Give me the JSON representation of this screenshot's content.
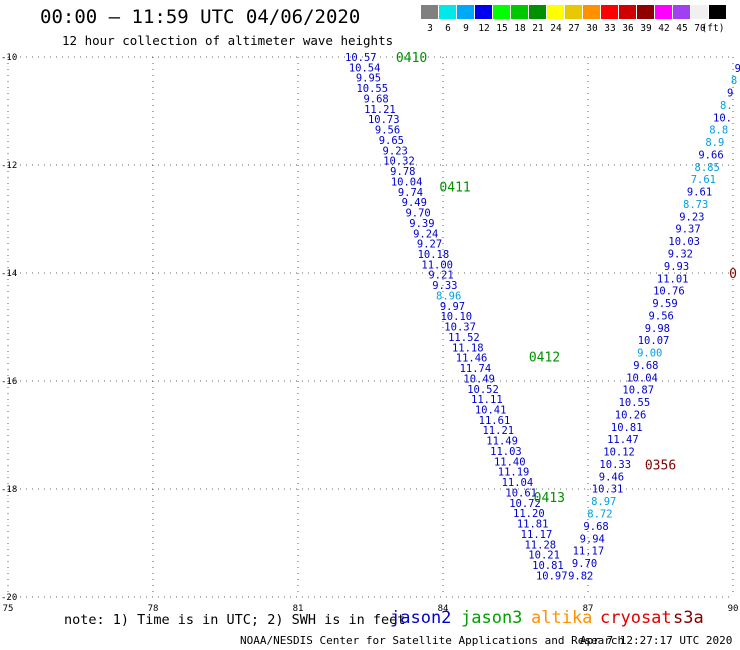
{
  "header": {
    "title": "00:00 – 11:59 UTC 04/06/2020",
    "subtitle": "12 hour collection of altimeter wave heights"
  },
  "colorbar": {
    "unit": "(ft)",
    "cells": [
      {
        "label": "3",
        "color": "#808080"
      },
      {
        "label": "6",
        "color": "#00e8e8"
      },
      {
        "label": "9",
        "color": "#00a8f8"
      },
      {
        "label": "12",
        "color": "#0000f0"
      },
      {
        "label": "15",
        "color": "#00ff00"
      },
      {
        "label": "18",
        "color": "#00c800"
      },
      {
        "label": "21",
        "color": "#009000"
      },
      {
        "label": "24",
        "color": "#ffff00"
      },
      {
        "label": "27",
        "color": "#e8c800"
      },
      {
        "label": "30",
        "color": "#ff9000"
      },
      {
        "label": "33",
        "color": "#ff0000"
      },
      {
        "label": "36",
        "color": "#d00000"
      },
      {
        "label": "39",
        "color": "#900000"
      },
      {
        "label": "42",
        "color": "#ff00ff"
      },
      {
        "label": "45",
        "color": "#a040f0"
      },
      {
        "label": "70",
        "color": "#f0f0f0"
      },
      {
        "label": "",
        "color": "#000000"
      }
    ]
  },
  "footer": {
    "note": "note: 1) Time is in UTC; 2) SWH is in feet",
    "satellites": [
      {
        "name": "jason2",
        "color": "#0000d0"
      },
      {
        "name": "jason3",
        "color": "#00a000"
      },
      {
        "name": "altika",
        "color": "#ff9000"
      },
      {
        "name": "cryosat",
        "color": "#e00000"
      },
      {
        "name": "s3a",
        "color": "#800000"
      }
    ],
    "credit": "NOAA/NESDIS Center for Satellite Applications and Research",
    "timestamp": "Apr  7 12:27:17 UTC 2020"
  },
  "chart_data": {
    "type": "scatter",
    "xlim": [
      75,
      90
    ],
    "ylim": [
      -20,
      -10
    ],
    "xticks": [
      {
        "v": 75,
        "l": "75"
      },
      {
        "v": 78,
        "l": "78"
      },
      {
        "v": 81,
        "l": "81"
      },
      {
        "v": 84,
        "l": "84"
      },
      {
        "v": 87,
        "l": "87"
      },
      {
        "v": 90,
        "l": "90"
      }
    ],
    "yticks": [
      {
        "v": -10,
        "l": "-10"
      },
      {
        "v": -12,
        "l": "-12"
      },
      {
        "v": -14,
        "l": "-14"
      },
      {
        "v": -16,
        "l": "-16"
      },
      {
        "v": -18,
        "l": "-18"
      },
      {
        "v": -20,
        "l": "-20"
      }
    ],
    "grid": true,
    "colors": {
      "blue": "#0000cc",
      "lightblue": "#00a0e0",
      "green": "#009000",
      "darkred": "#800000"
    },
    "tracks": [
      {
        "name": "track-1",
        "start": [
          82.3,
          -10.0
        ],
        "end": [
          86.25,
          -19.6
        ],
        "points": [
          {
            "v": "10.57",
            "c": "blue"
          },
          {
            "v": "10.54",
            "c": "blue"
          },
          {
            "v": "9.95",
            "c": "blue"
          },
          {
            "v": "10.55",
            "c": "blue"
          },
          {
            "v": "9.68",
            "c": "blue"
          },
          {
            "v": "11.21",
            "c": "blue"
          },
          {
            "v": "10.73",
            "c": "blue"
          },
          {
            "v": "9.56",
            "c": "blue"
          },
          {
            "v": "9.65",
            "c": "blue"
          },
          {
            "v": "9.23",
            "c": "blue"
          },
          {
            "v": "10.32",
            "c": "blue"
          },
          {
            "v": "9.78",
            "c": "blue"
          },
          {
            "v": "10.04",
            "c": "blue"
          },
          {
            "v": "9.74",
            "c": "blue"
          },
          {
            "v": "9.49",
            "c": "blue"
          },
          {
            "v": "9.70",
            "c": "blue"
          },
          {
            "v": "9.39",
            "c": "blue"
          },
          {
            "v": "9.24",
            "c": "blue"
          },
          {
            "v": "9.27",
            "c": "blue"
          },
          {
            "v": "10.18",
            "c": "blue"
          },
          {
            "v": "11.00",
            "c": "blue"
          },
          {
            "v": "9.21",
            "c": "blue"
          },
          {
            "v": "9.33",
            "c": "blue"
          },
          {
            "v": "8.96",
            "c": "lightblue"
          },
          {
            "v": "9.97",
            "c": "blue"
          },
          {
            "v": "10.10",
            "c": "blue"
          },
          {
            "v": "10.37",
            "c": "blue"
          },
          {
            "v": "11.52",
            "c": "blue"
          },
          {
            "v": "11.18",
            "c": "blue"
          },
          {
            "v": "11.46",
            "c": "blue"
          },
          {
            "v": "11.74",
            "c": "blue"
          },
          {
            "v": "10.49",
            "c": "blue"
          },
          {
            "v": "10.52",
            "c": "blue"
          },
          {
            "v": "11.11",
            "c": "blue"
          },
          {
            "v": "10.41",
            "c": "blue"
          },
          {
            "v": "11.61",
            "c": "blue"
          },
          {
            "v": "11.21",
            "c": "blue"
          },
          {
            "v": "11.49",
            "c": "blue"
          },
          {
            "v": "11.03",
            "c": "blue"
          },
          {
            "v": "11.40",
            "c": "blue"
          },
          {
            "v": "11.19",
            "c": "blue"
          },
          {
            "v": "11.04",
            "c": "blue"
          },
          {
            "v": "10.61",
            "c": "blue"
          },
          {
            "v": "10.72",
            "c": "blue"
          },
          {
            "v": "11.20",
            "c": "blue"
          },
          {
            "v": "11.81",
            "c": "blue"
          },
          {
            "v": "11.17",
            "c": "blue"
          },
          {
            "v": "11.28",
            "c": "blue"
          },
          {
            "v": "10.21",
            "c": "blue"
          },
          {
            "v": "10.81",
            "c": "blue"
          },
          {
            "v": "10.97",
            "c": "blue"
          }
        ]
      },
      {
        "name": "track-2",
        "start": [
          90.1,
          -10.2
        ],
        "end": [
          86.85,
          -19.6
        ],
        "points": [
          {
            "v": "9",
            "c": "blue"
          },
          {
            "v": "8",
            "c": "lightblue"
          },
          {
            "v": "9",
            "c": "blue"
          },
          {
            "v": "8.",
            "c": "lightblue"
          },
          {
            "v": "10.",
            "c": "blue"
          },
          {
            "v": "8.8",
            "c": "lightblue"
          },
          {
            "v": "8.9",
            "c": "lightblue"
          },
          {
            "v": "9.66",
            "c": "blue"
          },
          {
            "v": "8.85",
            "c": "lightblue"
          },
          {
            "v": "7.61",
            "c": "lightblue"
          },
          {
            "v": "9.61",
            "c": "blue"
          },
          {
            "v": "8.73",
            "c": "lightblue"
          },
          {
            "v": "9.23",
            "c": "blue"
          },
          {
            "v": "9.37",
            "c": "blue"
          },
          {
            "v": "10.03",
            "c": "blue"
          },
          {
            "v": "9.32",
            "c": "blue"
          },
          {
            "v": "9.93",
            "c": "blue"
          },
          {
            "v": "11.01",
            "c": "blue"
          },
          {
            "v": "10.76",
            "c": "blue"
          },
          {
            "v": "9.59",
            "c": "blue"
          },
          {
            "v": "9.56",
            "c": "blue"
          },
          {
            "v": "9.98",
            "c": "blue"
          },
          {
            "v": "10.07",
            "c": "blue"
          },
          {
            "v": "9.00",
            "c": "lightblue"
          },
          {
            "v": "9.68",
            "c": "blue"
          },
          {
            "v": "10.04",
            "c": "blue"
          },
          {
            "v": "10.87",
            "c": "blue"
          },
          {
            "v": "10.55",
            "c": "blue"
          },
          {
            "v": "10.26",
            "c": "blue"
          },
          {
            "v": "10.81",
            "c": "blue"
          },
          {
            "v": "11.47",
            "c": "blue"
          },
          {
            "v": "10.12",
            "c": "blue"
          },
          {
            "v": "10.33",
            "c": "blue"
          },
          {
            "v": "9.46",
            "c": "blue"
          },
          {
            "v": "10.31",
            "c": "blue"
          },
          {
            "v": "8.97",
            "c": "lightblue"
          },
          {
            "v": "8.72",
            "c": "lightblue"
          },
          {
            "v": "9.68",
            "c": "blue"
          },
          {
            "v": "9.94",
            "c": "blue"
          },
          {
            "v": "11.17",
            "c": "blue"
          },
          {
            "v": "9.70",
            "c": "blue"
          },
          {
            "v": "9.82",
            "c": "blue"
          }
        ]
      }
    ],
    "annotations": [
      {
        "text": "0410",
        "x": 83.35,
        "y": -10.0,
        "c": "green"
      },
      {
        "text": "0411",
        "x": 84.25,
        "y": -12.4,
        "c": "green"
      },
      {
        "text": "0412",
        "x": 86.1,
        "y": -15.55,
        "c": "green"
      },
      {
        "text": "0413",
        "x": 86.2,
        "y": -18.15,
        "c": "green"
      },
      {
        "text": "0356",
        "x": 88.5,
        "y": -17.55,
        "c": "darkred"
      },
      {
        "text": "0",
        "x": 90.0,
        "y": -14.0,
        "c": "darkred"
      }
    ]
  }
}
